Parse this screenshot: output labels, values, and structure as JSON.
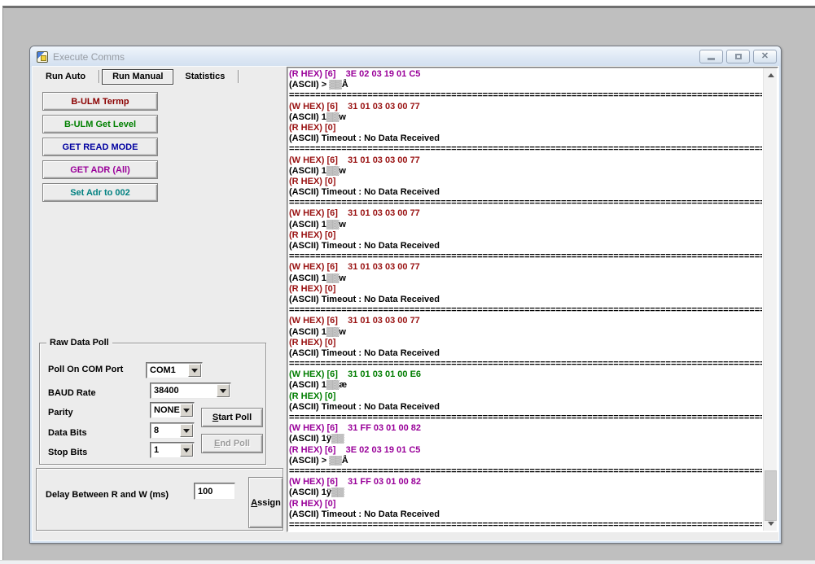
{
  "window": {
    "title": "Execute Comms"
  },
  "tabs": [
    {
      "label": "Run Auto",
      "selected": false
    },
    {
      "label": "Run Manual",
      "selected": true
    },
    {
      "label": "Statistics",
      "selected": false
    }
  ],
  "action_buttons": [
    {
      "label": "B-ULM Termp",
      "color": "#8b0000"
    },
    {
      "label": "B-ULM Get Level",
      "color": "#008000"
    },
    {
      "label": "GET READ MODE",
      "color": "#0000a0"
    },
    {
      "label": "GET ADR (All)",
      "color": "#990099"
    },
    {
      "label": "Set Adr to 002",
      "color": "#008080"
    }
  ],
  "raw_data_poll": {
    "title": "Raw Data Poll",
    "fields": [
      {
        "label": "Poll On COM Port",
        "value": "COM1"
      },
      {
        "label": "BAUD Rate",
        "value": "38400"
      },
      {
        "label": "Parity",
        "value": "NONE"
      },
      {
        "label": "Data Bits",
        "value": "8"
      },
      {
        "label": "Stop Bits",
        "value": "1"
      }
    ],
    "start_button": {
      "first": "S",
      "rest": "tart Poll"
    },
    "end_button": {
      "first": "E",
      "rest": "nd Poll"
    }
  },
  "delay_panel": {
    "label": "Delay Between R and W (ms)",
    "value": "100",
    "assign_button": {
      "first": "A",
      "rest": "ssign"
    }
  },
  "log": {
    "separator": "==============================================================================================================",
    "colors": {
      "purple": "#990099",
      "red": "#991111",
      "green": "#007d00",
      "black": "#000000"
    },
    "lines": [
      {
        "c": "p",
        "t": "(R HEX) [6]    3E 02 03 19 01 C5"
      },
      {
        "c": "k",
        "t": "(ASCII) > ▒▒Å"
      },
      {
        "c": "s",
        "t": ""
      },
      {
        "c": "r",
        "t": "(W HEX) [6]    31 01 03 03 00 77"
      },
      {
        "c": "k",
        "t": "(ASCII) 1▒▒w"
      },
      {
        "c": "r",
        "t": "(R HEX) [0]"
      },
      {
        "c": "k",
        "t": "(ASCII) Timeout : No Data Received"
      },
      {
        "c": "s",
        "t": ""
      },
      {
        "c": "r",
        "t": "(W HEX) [6]    31 01 03 03 00 77"
      },
      {
        "c": "k",
        "t": "(ASCII) 1▒▒w"
      },
      {
        "c": "r",
        "t": "(R HEX) [0]"
      },
      {
        "c": "k",
        "t": "(ASCII) Timeout : No Data Received"
      },
      {
        "c": "s",
        "t": ""
      },
      {
        "c": "r",
        "t": "(W HEX) [6]    31 01 03 03 00 77"
      },
      {
        "c": "k",
        "t": "(ASCII) 1▒▒w"
      },
      {
        "c": "r",
        "t": "(R HEX) [0]"
      },
      {
        "c": "k",
        "t": "(ASCII) Timeout : No Data Received"
      },
      {
        "c": "s",
        "t": ""
      },
      {
        "c": "r",
        "t": "(W HEX) [6]    31 01 03 03 00 77"
      },
      {
        "c": "k",
        "t": "(ASCII) 1▒▒w"
      },
      {
        "c": "r",
        "t": "(R HEX) [0]"
      },
      {
        "c": "k",
        "t": "(ASCII) Timeout : No Data Received"
      },
      {
        "c": "s",
        "t": ""
      },
      {
        "c": "r",
        "t": "(W HEX) [6]    31 01 03 03 00 77"
      },
      {
        "c": "k",
        "t": "(ASCII) 1▒▒w"
      },
      {
        "c": "r",
        "t": "(R HEX) [0]"
      },
      {
        "c": "k",
        "t": "(ASCII) Timeout : No Data Received"
      },
      {
        "c": "s",
        "t": ""
      },
      {
        "c": "g",
        "t": "(W HEX) [6]    31 01 03 01 00 E6"
      },
      {
        "c": "k",
        "t": "(ASCII) 1▒▒æ"
      },
      {
        "c": "g",
        "t": "(R HEX) [0]"
      },
      {
        "c": "k",
        "t": "(ASCII) Timeout : No Data Received"
      },
      {
        "c": "s",
        "t": ""
      },
      {
        "c": "p",
        "t": "(W HEX) [6]    31 FF 03 01 00 82"
      },
      {
        "c": "k",
        "t": "(ASCII) 1ÿ▒▒"
      },
      {
        "c": "p",
        "t": "(R HEX) [6]    3E 02 03 19 01 C5"
      },
      {
        "c": "k",
        "t": "(ASCII) > ▒▒Å"
      },
      {
        "c": "s",
        "t": ""
      },
      {
        "c": "p",
        "t": "(W HEX) [6]    31 FF 03 01 00 82"
      },
      {
        "c": "k",
        "t": "(ASCII) 1ÿ▒▒"
      },
      {
        "c": "p",
        "t": "(R HEX) [0]"
      },
      {
        "c": "k",
        "t": "(ASCII) Timeout : No Data Received"
      },
      {
        "c": "s",
        "t": ""
      }
    ]
  }
}
